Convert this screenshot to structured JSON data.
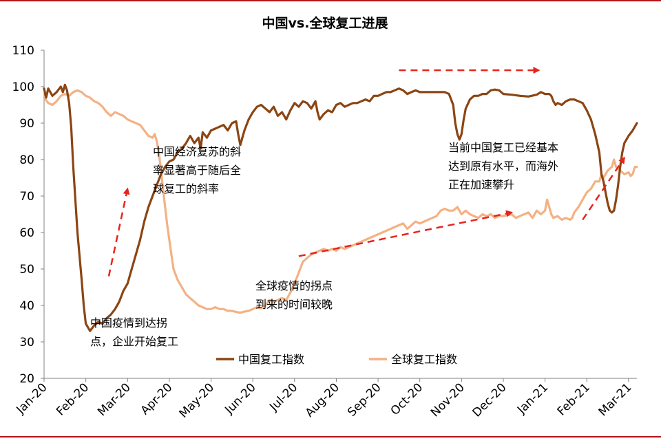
{
  "chart_data": {
    "type": "line",
    "title": "中国vs.全球复工进展",
    "xlabel": "",
    "ylabel": "",
    "ylim": [
      20,
      110
    ],
    "yticks": [
      20,
      30,
      40,
      50,
      60,
      70,
      80,
      90,
      100,
      110
    ],
    "xlim": [
      0,
      14.2
    ],
    "x_tick_labels": [
      "Jan-20",
      "Feb-20",
      "Mar-20",
      "Apr-20",
      "May-20",
      "Jun-20",
      "Jul-20",
      "Aug-20",
      "Sep-20",
      "Oct-20",
      "Nov-20",
      "Dec-20",
      "Jan-21",
      "Feb-21",
      "Mar-21"
    ],
    "legend_position": "bottom-center",
    "grid": false,
    "series": [
      {
        "name": "中国复工指数",
        "color": "#8b4513",
        "points": [
          [
            0,
            99.5
          ],
          [
            0.05,
            97
          ],
          [
            0.1,
            99.5
          ],
          [
            0.2,
            97.5
          ],
          [
            0.3,
            98.5
          ],
          [
            0.4,
            100
          ],
          [
            0.45,
            98.5
          ],
          [
            0.5,
            100.5
          ],
          [
            0.55,
            99
          ],
          [
            0.6,
            95.5
          ],
          [
            0.65,
            89
          ],
          [
            0.7,
            78
          ],
          [
            0.8,
            60
          ],
          [
            0.9,
            47
          ],
          [
            0.95,
            40
          ],
          [
            1.0,
            35
          ],
          [
            1.05,
            34
          ],
          [
            1.1,
            33
          ],
          [
            1.2,
            34.5
          ],
          [
            1.3,
            35.5
          ],
          [
            1.4,
            35
          ],
          [
            1.5,
            36.5
          ],
          [
            1.6,
            37.5
          ],
          [
            1.7,
            39
          ],
          [
            1.8,
            41
          ],
          [
            1.9,
            44
          ],
          [
            2.0,
            46
          ],
          [
            2.1,
            50
          ],
          [
            2.2,
            54
          ],
          [
            2.3,
            58
          ],
          [
            2.4,
            63
          ],
          [
            2.5,
            67
          ],
          [
            2.6,
            70
          ],
          [
            2.7,
            73
          ],
          [
            2.8,
            76
          ],
          [
            2.9,
            78
          ],
          [
            3.0,
            79.5
          ],
          [
            3.1,
            80
          ],
          [
            3.2,
            82
          ],
          [
            3.3,
            83
          ],
          [
            3.4,
            84.5
          ],
          [
            3.5,
            86.5
          ],
          [
            3.6,
            84.5
          ],
          [
            3.7,
            86
          ],
          [
            3.75,
            83
          ],
          [
            3.8,
            87.5
          ],
          [
            3.9,
            86
          ],
          [
            4.0,
            88
          ],
          [
            4.1,
            88.5
          ],
          [
            4.2,
            89
          ],
          [
            4.3,
            89.5
          ],
          [
            4.4,
            88
          ],
          [
            4.5,
            90
          ],
          [
            4.6,
            90.5
          ],
          [
            4.65,
            87
          ],
          [
            4.7,
            84
          ],
          [
            4.8,
            88
          ],
          [
            4.9,
            91
          ],
          [
            5.0,
            93
          ],
          [
            5.1,
            94.5
          ],
          [
            5.2,
            95
          ],
          [
            5.3,
            94
          ],
          [
            5.4,
            93
          ],
          [
            5.5,
            94.5
          ],
          [
            5.6,
            92
          ],
          [
            5.7,
            93
          ],
          [
            5.8,
            91
          ],
          [
            5.9,
            93.5
          ],
          [
            6.0,
            95.5
          ],
          [
            6.1,
            94.5
          ],
          [
            6.2,
            96
          ],
          [
            6.3,
            95.5
          ],
          [
            6.4,
            94
          ],
          [
            6.5,
            96
          ],
          [
            6.55,
            93
          ],
          [
            6.6,
            91
          ],
          [
            6.7,
            92.5
          ],
          [
            6.8,
            93.5
          ],
          [
            6.9,
            93
          ],
          [
            7.0,
            95
          ],
          [
            7.1,
            95.5
          ],
          [
            7.2,
            94.5
          ],
          [
            7.3,
            95
          ],
          [
            7.4,
            95.5
          ],
          [
            7.5,
            95.5
          ],
          [
            7.6,
            96
          ],
          [
            7.7,
            96.5
          ],
          [
            7.8,
            96
          ],
          [
            7.9,
            97.5
          ],
          [
            8.0,
            97.5
          ],
          [
            8.1,
            98
          ],
          [
            8.2,
            98.5
          ],
          [
            8.3,
            98.5
          ],
          [
            8.4,
            99
          ],
          [
            8.5,
            99.5
          ],
          [
            8.6,
            99
          ],
          [
            8.7,
            98
          ],
          [
            8.8,
            98.5
          ],
          [
            8.9,
            99
          ],
          [
            9.0,
            98.5
          ],
          [
            9.2,
            98.5
          ],
          [
            9.4,
            98.5
          ],
          [
            9.6,
            98.5
          ],
          [
            9.7,
            98
          ],
          [
            9.8,
            95
          ],
          [
            9.85,
            90
          ],
          [
            9.9,
            87
          ],
          [
            9.95,
            85.5
          ],
          [
            10.0,
            87
          ],
          [
            10.05,
            91
          ],
          [
            10.1,
            94
          ],
          [
            10.2,
            96.5
          ],
          [
            10.3,
            97.5
          ],
          [
            10.4,
            97.5
          ],
          [
            10.5,
            98
          ],
          [
            10.6,
            98
          ],
          [
            10.7,
            99
          ],
          [
            10.8,
            99.2
          ],
          [
            10.9,
            99
          ],
          [
            11.0,
            98
          ],
          [
            11.2,
            97.8
          ],
          [
            11.4,
            97.5
          ],
          [
            11.6,
            97.3
          ],
          [
            11.8,
            97.8
          ],
          [
            11.9,
            98.5
          ],
          [
            12.0,
            98
          ],
          [
            12.1,
            98
          ],
          [
            12.15,
            97.5
          ],
          [
            12.2,
            96
          ],
          [
            12.25,
            95
          ],
          [
            12.3,
            95.5
          ],
          [
            12.4,
            95
          ],
          [
            12.5,
            96
          ],
          [
            12.6,
            96.5
          ],
          [
            12.7,
            96.5
          ],
          [
            12.8,
            96
          ],
          [
            12.9,
            95.5
          ],
          [
            13.0,
            93.5
          ],
          [
            13.1,
            91
          ],
          [
            13.2,
            87
          ],
          [
            13.3,
            82
          ],
          [
            13.35,
            76
          ],
          [
            13.4,
            74
          ],
          [
            13.45,
            71
          ],
          [
            13.5,
            68
          ],
          [
            13.55,
            66
          ],
          [
            13.6,
            65.5
          ],
          [
            13.65,
            66
          ],
          [
            13.7,
            69
          ],
          [
            13.75,
            73
          ],
          [
            13.8,
            78
          ],
          [
            13.85,
            82
          ],
          [
            13.9,
            84.5
          ],
          [
            14.0,
            86.5
          ],
          [
            14.1,
            88
          ],
          [
            14.2,
            90
          ]
        ]
      },
      {
        "name": "全球复工指数",
        "color": "#f4b183",
        "points": [
          [
            0,
            97
          ],
          [
            0.1,
            95.5
          ],
          [
            0.2,
            95
          ],
          [
            0.3,
            96
          ],
          [
            0.4,
            97.5
          ],
          [
            0.5,
            98
          ],
          [
            0.6,
            97.5
          ],
          [
            0.7,
            98.5
          ],
          [
            0.8,
            99
          ],
          [
            0.9,
            98.5
          ],
          [
            1.0,
            97.5
          ],
          [
            1.1,
            97
          ],
          [
            1.2,
            96
          ],
          [
            1.3,
            95.5
          ],
          [
            1.4,
            94.5
          ],
          [
            1.5,
            93
          ],
          [
            1.6,
            92
          ],
          [
            1.7,
            93
          ],
          [
            1.8,
            92.5
          ],
          [
            1.9,
            92
          ],
          [
            2.0,
            91
          ],
          [
            2.1,
            90.5
          ],
          [
            2.2,
            90
          ],
          [
            2.3,
            89.5
          ],
          [
            2.4,
            88
          ],
          [
            2.5,
            86.5
          ],
          [
            2.6,
            86
          ],
          [
            2.65,
            87
          ],
          [
            2.7,
            85
          ],
          [
            2.75,
            82
          ],
          [
            2.8,
            77
          ],
          [
            2.85,
            72
          ],
          [
            2.9,
            67
          ],
          [
            2.95,
            62
          ],
          [
            3.0,
            58
          ],
          [
            3.05,
            54
          ],
          [
            3.1,
            50
          ],
          [
            3.2,
            47
          ],
          [
            3.3,
            45
          ],
          [
            3.4,
            43
          ],
          [
            3.5,
            42
          ],
          [
            3.6,
            41
          ],
          [
            3.7,
            40
          ],
          [
            3.8,
            39.5
          ],
          [
            3.9,
            39
          ],
          [
            4.0,
            39
          ],
          [
            4.1,
            39.5
          ],
          [
            4.2,
            39
          ],
          [
            4.3,
            39
          ],
          [
            4.4,
            38.5
          ],
          [
            4.5,
            38.5
          ],
          [
            4.6,
            38.2
          ],
          [
            4.7,
            38
          ],
          [
            4.8,
            38.3
          ],
          [
            4.9,
            38.5
          ],
          [
            5.0,
            39
          ],
          [
            5.1,
            39.5
          ],
          [
            5.2,
            39.2
          ],
          [
            5.3,
            40
          ],
          [
            5.4,
            41.5
          ],
          [
            5.5,
            41
          ],
          [
            5.6,
            41.5
          ],
          [
            5.7,
            42
          ],
          [
            5.8,
            41.5
          ],
          [
            5.9,
            43.5
          ],
          [
            6.0,
            46
          ],
          [
            6.1,
            49
          ],
          [
            6.2,
            52
          ],
          [
            6.3,
            53
          ],
          [
            6.4,
            54
          ],
          [
            6.5,
            54.5
          ],
          [
            6.6,
            55
          ],
          [
            6.7,
            55.5
          ],
          [
            6.8,
            55
          ],
          [
            6.9,
            55.5
          ],
          [
            7.0,
            55
          ],
          [
            7.1,
            56
          ],
          [
            7.2,
            55.5
          ],
          [
            7.3,
            56
          ],
          [
            7.4,
            56.5
          ],
          [
            7.5,
            57
          ],
          [
            7.6,
            57.5
          ],
          [
            7.7,
            58
          ],
          [
            7.8,
            58.5
          ],
          [
            7.9,
            59
          ],
          [
            8.0,
            59.5
          ],
          [
            8.1,
            60
          ],
          [
            8.2,
            60.5
          ],
          [
            8.3,
            61
          ],
          [
            8.4,
            61.5
          ],
          [
            8.5,
            62
          ],
          [
            8.6,
            62.5
          ],
          [
            8.7,
            61
          ],
          [
            8.8,
            62
          ],
          [
            8.9,
            63
          ],
          [
            9.0,
            62.5
          ],
          [
            9.1,
            63
          ],
          [
            9.2,
            63.5
          ],
          [
            9.3,
            64
          ],
          [
            9.4,
            64.5
          ],
          [
            9.5,
            66
          ],
          [
            9.6,
            66.5
          ],
          [
            9.7,
            66
          ],
          [
            9.8,
            66
          ],
          [
            9.9,
            67
          ],
          [
            10.0,
            65
          ],
          [
            10.1,
            66
          ],
          [
            10.2,
            65
          ],
          [
            10.3,
            64.5
          ],
          [
            10.4,
            64
          ],
          [
            10.5,
            65
          ],
          [
            10.6,
            64.5
          ],
          [
            10.7,
            65
          ],
          [
            10.8,
            64
          ],
          [
            10.9,
            64.5
          ],
          [
            11.0,
            64.5
          ],
          [
            11.2,
            65
          ],
          [
            11.3,
            64
          ],
          [
            11.4,
            64.5
          ],
          [
            11.5,
            65
          ],
          [
            11.6,
            65.5
          ],
          [
            11.7,
            64
          ],
          [
            11.8,
            66
          ],
          [
            11.9,
            65
          ],
          [
            12.0,
            66
          ],
          [
            12.05,
            69
          ],
          [
            12.1,
            67
          ],
          [
            12.15,
            65
          ],
          [
            12.2,
            64
          ],
          [
            12.3,
            64.5
          ],
          [
            12.4,
            63.5
          ],
          [
            12.5,
            64
          ],
          [
            12.6,
            63.5
          ],
          [
            12.65,
            64
          ],
          [
            12.7,
            65.5
          ],
          [
            12.8,
            67
          ],
          [
            12.9,
            69
          ],
          [
            13.0,
            71
          ],
          [
            13.1,
            72
          ],
          [
            13.2,
            74
          ],
          [
            13.3,
            74
          ],
          [
            13.35,
            76
          ],
          [
            13.4,
            75
          ],
          [
            13.5,
            77
          ],
          [
            13.6,
            78
          ],
          [
            13.65,
            80
          ],
          [
            13.7,
            78
          ],
          [
            13.8,
            77
          ],
          [
            13.9,
            76
          ],
          [
            14.0,
            76.5
          ],
          [
            14.05,
            75.5
          ],
          [
            14.1,
            76
          ],
          [
            14.15,
            78
          ],
          [
            14.2,
            78
          ]
        ]
      }
    ],
    "annotations": [
      {
        "lines": [
          "中国经济复苏的斜",
          "率显著高于随后全",
          "球复工的斜率"
        ]
      },
      {
        "lines": [
          "中国疫情到达拐",
          "点，企业开始复工"
        ]
      },
      {
        "lines": [
          "全球疫情的拐点",
          "到来的时间较晚"
        ]
      },
      {
        "lines": [
          "当前中国复工已经基本",
          "达到原有水平，而海外",
          "正在加速攀升"
        ]
      }
    ],
    "arrows": [
      {
        "from": [
          1.55,
          48
        ],
        "to": [
          2.0,
          72
        ]
      },
      {
        "from": [
          6.1,
          53.5
        ],
        "to": [
          11.2,
          65.5
        ]
      },
      {
        "from": [
          12.9,
          63.5
        ],
        "to": [
          13.9,
          80.5
        ]
      },
      {
        "from": [
          8.5,
          104.5
        ],
        "to": [
          11.85,
          104.5
        ]
      }
    ]
  }
}
